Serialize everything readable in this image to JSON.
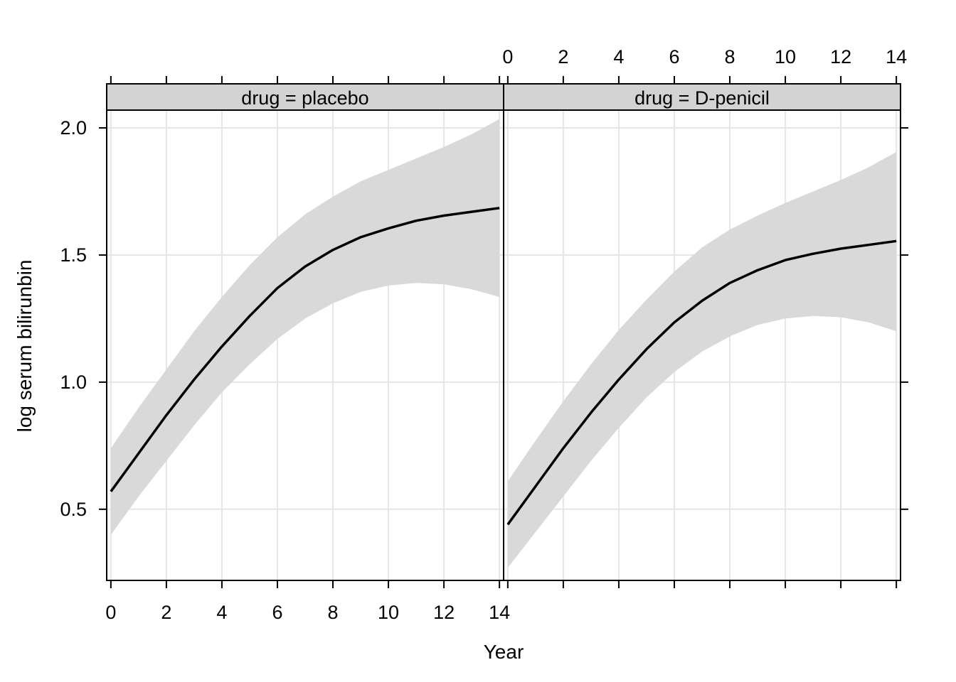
{
  "chart_data": {
    "type": "line",
    "xlabel": "Year",
    "ylabel": "log serum bilirunbin",
    "xlim": [
      -0.15,
      14.15
    ],
    "ylim": [
      0.22,
      2.07
    ],
    "xticks": [
      0,
      2,
      4,
      6,
      8,
      10,
      12,
      14
    ],
    "xtick_labels": [
      "0",
      "2",
      "4",
      "6",
      "8",
      "10",
      "12",
      "14"
    ],
    "yticks": [
      0.5,
      1.0,
      1.5,
      2.0
    ],
    "ytick_labels": [
      "0.5",
      "1.0",
      "1.5",
      "2.0"
    ],
    "grid": true,
    "band_color": "#d9d9d9",
    "grid_color": "#e6e6e6",
    "line_color": "#000000",
    "strip_color": "#d3d3d3",
    "panels": [
      {
        "strip": "drug = placebo",
        "x": [
          0,
          1,
          2,
          3,
          4,
          5,
          6,
          7,
          8,
          9,
          10,
          11,
          12,
          13,
          14
        ],
        "fit": [
          0.57,
          0.72,
          0.87,
          1.01,
          1.14,
          1.26,
          1.37,
          1.455,
          1.52,
          1.57,
          1.605,
          1.635,
          1.655,
          1.67,
          1.685
        ],
        "lower": [
          0.4,
          0.55,
          0.69,
          0.83,
          0.96,
          1.07,
          1.17,
          1.25,
          1.31,
          1.355,
          1.38,
          1.39,
          1.385,
          1.365,
          1.335
        ],
        "upper": [
          0.74,
          0.9,
          1.05,
          1.2,
          1.335,
          1.46,
          1.57,
          1.66,
          1.73,
          1.79,
          1.835,
          1.88,
          1.925,
          1.975,
          2.035
        ]
      },
      {
        "strip": "drug = D-penicil",
        "x": [
          0,
          1,
          2,
          3,
          4,
          5,
          6,
          7,
          8,
          9,
          10,
          11,
          12,
          13,
          14
        ],
        "fit": [
          0.44,
          0.59,
          0.74,
          0.88,
          1.01,
          1.13,
          1.235,
          1.32,
          1.39,
          1.44,
          1.48,
          1.505,
          1.525,
          1.54,
          1.555
        ],
        "lower": [
          0.27,
          0.41,
          0.55,
          0.69,
          0.82,
          0.94,
          1.04,
          1.12,
          1.18,
          1.225,
          1.25,
          1.26,
          1.255,
          1.235,
          1.2
        ],
        "upper": [
          0.61,
          0.77,
          0.925,
          1.07,
          1.205,
          1.325,
          1.435,
          1.53,
          1.6,
          1.655,
          1.705,
          1.75,
          1.795,
          1.845,
          1.905
        ]
      }
    ]
  }
}
